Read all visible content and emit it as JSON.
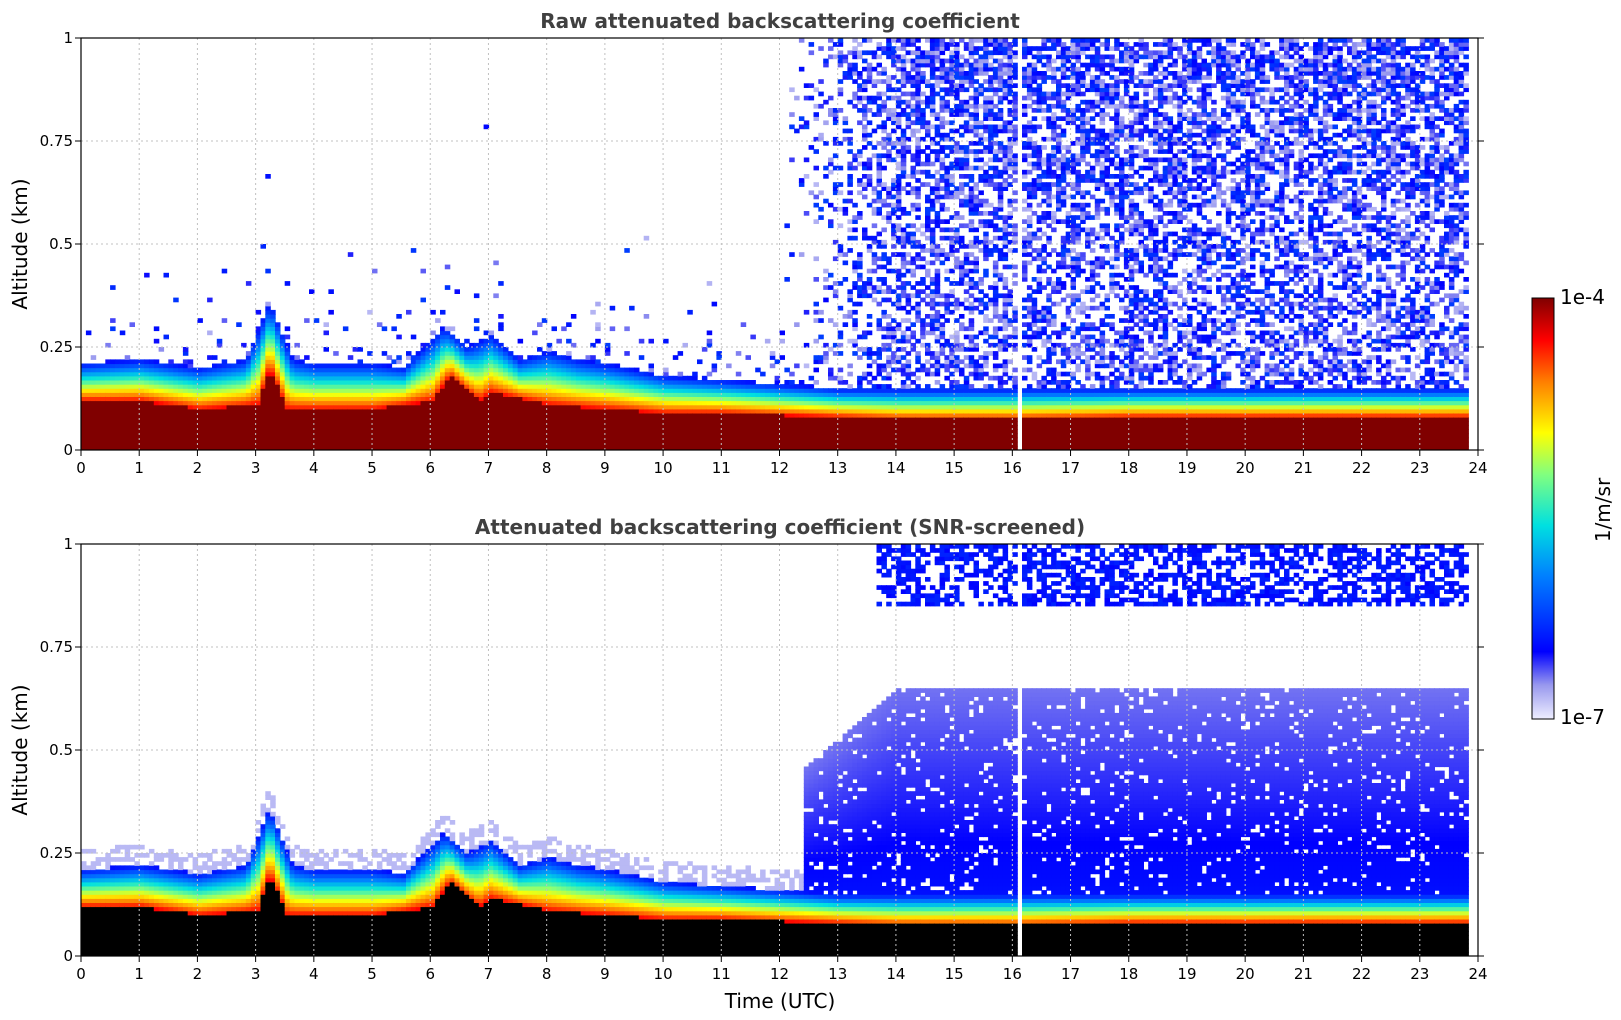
{
  "chart_data": [
    {
      "type": "heatmap",
      "title": "Raw attenuated backscattering coefficient",
      "xlabel": "",
      "ylabel": "Altitude (km)",
      "xlim": [
        0,
        24
      ],
      "ylim": [
        0,
        1
      ],
      "x_ticks": [
        "0",
        "1",
        "2",
        "3",
        "4",
        "5",
        "6",
        "7",
        "8",
        "9",
        "10",
        "11",
        "12",
        "13",
        "14",
        "15",
        "16",
        "17",
        "18",
        "19",
        "20",
        "21",
        "22",
        "23",
        "24"
      ],
      "y_ticks": [
        "0",
        "0.25",
        "0.5",
        "0.75",
        "1"
      ],
      "grid": true,
      "layer_top_km": [
        [
          0,
          0.21
        ],
        [
          1,
          0.22
        ],
        [
          2,
          0.2
        ],
        [
          2.8,
          0.22
        ],
        [
          3.2,
          0.36
        ],
        [
          3.6,
          0.22
        ],
        [
          4,
          0.21
        ],
        [
          5,
          0.21
        ],
        [
          5.5,
          0.2
        ],
        [
          6.2,
          0.3
        ],
        [
          6.6,
          0.25
        ],
        [
          7,
          0.28
        ],
        [
          7.5,
          0.22
        ],
        [
          8,
          0.24
        ],
        [
          8.5,
          0.22
        ],
        [
          9,
          0.21
        ],
        [
          10,
          0.18
        ],
        [
          11,
          0.17
        ],
        [
          12,
          0.16
        ],
        [
          13,
          0.15
        ],
        [
          14,
          0.15
        ],
        [
          15,
          0.15
        ],
        [
          16,
          0.15
        ],
        [
          17,
          0.15
        ],
        [
          18,
          0.15
        ],
        [
          19,
          0.15
        ],
        [
          20,
          0.15
        ],
        [
          21,
          0.15
        ],
        [
          22,
          0.15
        ],
        [
          23,
          0.15
        ],
        [
          23.8,
          0.15
        ]
      ],
      "saturated_top_km": [
        [
          0,
          0.12
        ],
        [
          1,
          0.12
        ],
        [
          2,
          0.1
        ],
        [
          3,
          0.11
        ],
        [
          3.2,
          0.2
        ],
        [
          3.5,
          0.1
        ],
        [
          4,
          0.1
        ],
        [
          5,
          0.1
        ],
        [
          6,
          0.12
        ],
        [
          6.3,
          0.18
        ],
        [
          6.8,
          0.12
        ],
        [
          7,
          0.14
        ],
        [
          8,
          0.11
        ],
        [
          9,
          0.1
        ],
        [
          10,
          0.09
        ],
        [
          11,
          0.09
        ],
        [
          12,
          0.085
        ],
        [
          13,
          0.08
        ],
        [
          14,
          0.075
        ],
        [
          16,
          0.075
        ],
        [
          18,
          0.08
        ],
        [
          20,
          0.08
        ],
        [
          22,
          0.08
        ],
        [
          23.8,
          0.08
        ]
      ]
    },
    {
      "type": "heatmap",
      "title": "Attenuated backscattering coefficient (SNR-screened)",
      "xlabel": "Time (UTC)",
      "ylabel": "Altitude (km)",
      "xlim": [
        0,
        24
      ],
      "ylim": [
        0,
        1
      ],
      "x_ticks": [
        "0",
        "1",
        "2",
        "3",
        "4",
        "5",
        "6",
        "7",
        "8",
        "9",
        "10",
        "11",
        "12",
        "13",
        "14",
        "15",
        "16",
        "17",
        "18",
        "19",
        "20",
        "21",
        "22",
        "23",
        "24"
      ],
      "y_ticks": [
        "0",
        "0.25",
        "0.5",
        "0.75",
        "1"
      ],
      "grid": true,
      "data_gap_utc": 16.1,
      "data_end_utc": 23.8
    }
  ],
  "colorbar": {
    "label": "1/m/sr",
    "max_label": "1e-4",
    "min_label": "1e-7",
    "colormap": "jet",
    "scale": "log"
  },
  "colors": {
    "title": "#404040",
    "saturation": "#800000",
    "screened_floor": "#000000",
    "grid": "#c0c0c0"
  }
}
